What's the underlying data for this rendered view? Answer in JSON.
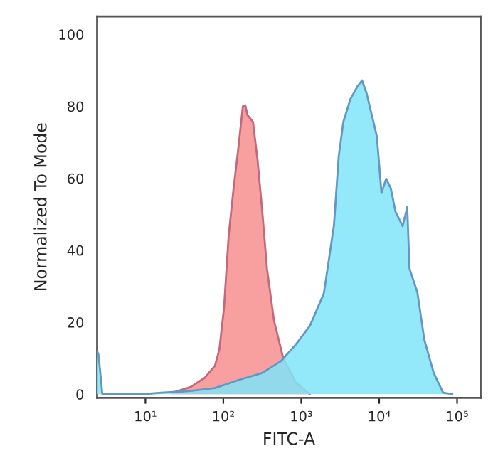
{
  "chart_data": {
    "type": "area",
    "xlabel": "FITC-A",
    "ylabel": "Normalized To Mode",
    "log": "x",
    "grid": false,
    "xlim": [
      2.4,
      200000
    ],
    "ylim": [
      -1,
      105
    ],
    "xticks": [
      {
        "value": 10,
        "label": "10¹"
      },
      {
        "value": 100,
        "label": "10²"
      },
      {
        "value": 1000,
        "label": "10³"
      },
      {
        "value": 10000,
        "label": "10⁴"
      },
      {
        "value": 100000,
        "label": "10⁵"
      }
    ],
    "yticks": [
      0,
      20,
      40,
      60,
      80,
      100
    ],
    "series": [
      {
        "color": "#f8a0a0",
        "x": [
          22,
          38,
          58,
          78,
          89,
          102,
          117,
          135,
          155,
          178,
          191,
          204,
          240,
          275,
          316,
          363,
          447,
          589,
          851,
          1288
        ],
        "values": [
          0.4,
          2,
          4.6,
          7.9,
          12.5,
          24,
          44,
          57,
          68,
          80,
          80.3,
          77.6,
          75.7,
          65,
          50.7,
          34.9,
          20.4,
          9.9,
          3.3,
          0
        ]
      },
      {
        "color": "#80e4f8",
        "x": [
          2.4,
          2.5,
          2.8,
          9.3,
          16,
          38,
          78,
          155,
          316,
          550,
          851,
          1290,
          1950,
          2630,
          3020,
          3470,
          4270,
          5250,
          6030,
          6920,
          9330,
          10700,
          12300,
          14100,
          16200,
          20000,
          22900,
          24500,
          30900,
          38000,
          50100,
          66100,
          87100
        ],
        "values": [
          12,
          11,
          0,
          0,
          0.4,
          0.9,
          1.7,
          3.9,
          5.9,
          9.2,
          13.8,
          19,
          28,
          47,
          66,
          75.7,
          82,
          85.5,
          87.2,
          83.5,
          71.7,
          55.9,
          59.9,
          57.2,
          50.7,
          46.7,
          52,
          34.9,
          28.3,
          15.1,
          5.9,
          0.4,
          0
        ]
      }
    ]
  }
}
